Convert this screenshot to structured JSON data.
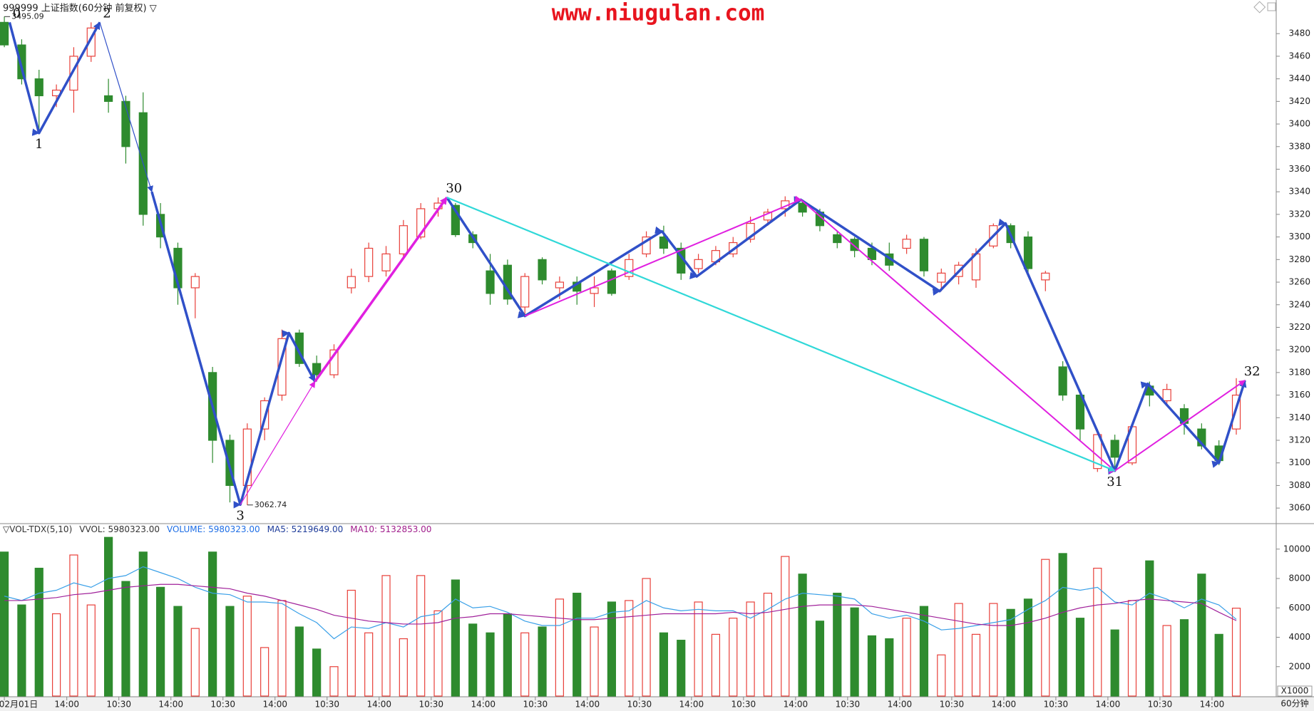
{
  "header": {
    "watermark": "www.niugulan.com",
    "period": "60分钟"
  },
  "chart_data": [
    {
      "type": "candlestick",
      "title": "999999 上证指数(60分钟 前复权) ▽",
      "up_color": "#e8403a",
      "down_color": "#2e8b2e",
      "xlim": [
        -0.25,
        73.3
      ],
      "ylim": [
        3050,
        3506
      ],
      "yticks": [
        3060,
        3080,
        3100,
        3120,
        3140,
        3160,
        3180,
        3200,
        3220,
        3240,
        3260,
        3280,
        3300,
        3320,
        3340,
        3360,
        3380,
        3400,
        3420,
        3440,
        3460,
        3480
      ],
      "ohlc": [
        [
          3490,
          3495.09,
          3468,
          3470
        ],
        [
          3470,
          3475,
          3435,
          3440
        ],
        [
          3440,
          3448,
          3392,
          3425
        ],
        [
          3425,
          3435,
          3415,
          3430
        ],
        [
          3430,
          3468,
          3410,
          3460
        ],
        [
          3460,
          3490,
          3455,
          3485
        ],
        [
          3425,
          3440,
          3410,
          3420
        ],
        [
          3420,
          3425,
          3365,
          3380
        ],
        [
          3410,
          3428,
          3310,
          3320
        ],
        [
          3320,
          3330,
          3290,
          3300
        ],
        [
          3290,
          3295,
          3240,
          3255
        ],
        [
          3255,
          3268,
          3228,
          3265
        ],
        [
          3180,
          3185,
          3100,
          3120
        ],
        [
          3120,
          3125,
          3065,
          3080
        ],
        [
          3080,
          3135,
          3062.74,
          3130
        ],
        [
          3130,
          3158,
          3120,
          3155
        ],
        [
          3160,
          3218,
          3155,
          3210
        ],
        [
          3215,
          3218,
          3185,
          3188
        ],
        [
          3188,
          3195,
          3172,
          3178
        ],
        [
          3178,
          3205,
          3175,
          3200
        ],
        [
          3255,
          3272,
          3250,
          3265
        ],
        [
          3265,
          3295,
          3260,
          3290
        ],
        [
          3270,
          3292,
          3265,
          3285
        ],
        [
          3285,
          3315,
          3280,
          3310
        ],
        [
          3300,
          3330,
          3298,
          3325
        ],
        [
          3325,
          3335,
          3318,
          3330
        ],
        [
          3328,
          3330,
          3300,
          3302
        ],
        [
          3302,
          3305,
          3290,
          3295
        ],
        [
          3270,
          3285,
          3240,
          3250
        ],
        [
          3275,
          3280,
          3240,
          3245
        ],
        [
          3238,
          3268,
          3230,
          3265
        ],
        [
          3280,
          3282,
          3258,
          3262
        ],
        [
          3255,
          3265,
          3245,
          3260
        ],
        [
          3260,
          3265,
          3240,
          3252
        ],
        [
          3250,
          3265,
          3238,
          3255
        ],
        [
          3270,
          3272,
          3248,
          3250
        ],
        [
          3265,
          3285,
          3262,
          3280
        ],
        [
          3285,
          3305,
          3282,
          3300
        ],
        [
          3300,
          3310,
          3285,
          3290
        ],
        [
          3290,
          3295,
          3262,
          3268
        ],
        [
          3272,
          3285,
          3268,
          3280
        ],
        [
          3278,
          3292,
          3275,
          3288
        ],
        [
          3285,
          3300,
          3282,
          3295
        ],
        [
          3298,
          3318,
          3295,
          3312
        ],
        [
          3315,
          3325,
          3310,
          3322
        ],
        [
          3325,
          3336,
          3318,
          3332
        ],
        [
          3330,
          3333,
          3318,
          3322
        ],
        [
          3322,
          3325,
          3305,
          3310
        ],
        [
          3302,
          3305,
          3290,
          3295
        ],
        [
          3298,
          3300,
          3282,
          3288
        ],
        [
          3290,
          3295,
          3275,
          3280
        ],
        [
          3285,
          3295,
          3270,
          3275
        ],
        [
          3290,
          3302,
          3285,
          3298
        ],
        [
          3298,
          3300,
          3265,
          3270
        ],
        [
          3260,
          3272,
          3252,
          3268
        ],
        [
          3265,
          3278,
          3258,
          3275
        ],
        [
          3262,
          3290,
          3255,
          3285
        ],
        [
          3292,
          3312,
          3290,
          3310
        ],
        [
          3310,
          3312,
          3290,
          3295
        ],
        [
          3300,
          3305,
          3265,
          3272
        ],
        [
          3262,
          3270,
          3252,
          3268
        ],
        [
          3185,
          3190,
          3155,
          3160
        ],
        [
          3160,
          3165,
          3120,
          3130
        ],
        [
          3095,
          3130,
          3092,
          3125
        ],
        [
          3120,
          3125,
          3092,
          3105
        ],
        [
          3100,
          3135,
          3098,
          3132
        ],
        [
          3168,
          3172,
          3150,
          3160
        ],
        [
          3155,
          3170,
          3150,
          3165
        ],
        [
          3148,
          3152,
          3125,
          3135
        ],
        [
          3130,
          3135,
          3112,
          3115
        ],
        [
          3115,
          3120,
          3098,
          3102
        ],
        [
          3130,
          3175,
          3125,
          3160
        ]
      ],
      "annotations": [
        {
          "label": "3495.09",
          "value": 3495.09,
          "index": 0
        },
        {
          "label": "3062.74",
          "value": 3062.74,
          "index": 14
        }
      ],
      "pivots": [
        {
          "label": "0",
          "index": 0.3,
          "price": 3490
        },
        {
          "label": "1",
          "index": 2,
          "price": 3392
        },
        {
          "label": "2",
          "index": 5.5,
          "price": 3490
        },
        {
          "label": "3",
          "index": 13.6,
          "price": 3063
        },
        {
          "label": "30",
          "index": 25.5,
          "price": 3335
        },
        {
          "label": "31",
          "index": 64,
          "price": 3093
        },
        {
          "label": "32",
          "index": 71.5,
          "price": 3173
        }
      ],
      "lines": [
        {
          "color": "#3050c8",
          "width": 3.5,
          "points": [
            [
              0.3,
              3490
            ],
            [
              2,
              3392
            ],
            [
              5.5,
              3490
            ]
          ]
        },
        {
          "color": "#3050c8",
          "width": 1.2,
          "points": [
            [
              5.5,
              3490
            ],
            [
              8.5,
              3340
            ]
          ]
        },
        {
          "color": "#3050c8",
          "width": 3.5,
          "points": [
            [
              8.5,
              3340
            ],
            [
              13.6,
              3063
            ],
            [
              16.4,
              3215
            ],
            [
              17.9,
              3172
            ]
          ]
        },
        {
          "color": "#3050c8",
          "width": 1.2,
          "points": [
            [
              17.9,
              3172
            ],
            [
              25.5,
              3335
            ]
          ]
        },
        {
          "color": "#3050c8",
          "width": 3.5,
          "points": [
            [
              25.5,
              3335
            ],
            [
              30,
              3230
            ],
            [
              37.9,
              3305
            ],
            [
              39.9,
              3265
            ],
            [
              45.9,
              3333
            ],
            [
              53.9,
              3252
            ],
            [
              57.7,
              3312
            ],
            [
              64,
              3093
            ],
            [
              65.9,
              3170
            ],
            [
              70,
              3100
            ],
            [
              71.5,
              3173
            ]
          ]
        },
        {
          "color": "#e020e0",
          "width": 1.2,
          "points": [
            [
              13.6,
              3063
            ],
            [
              17.9,
              3172
            ]
          ]
        },
        {
          "color": "#e020e0",
          "width": 3.5,
          "points": [
            [
              17.9,
              3172
            ],
            [
              25.5,
              3335
            ]
          ]
        },
        {
          "color": "#e020e0",
          "width": 2,
          "points": [
            [
              30,
              3230
            ],
            [
              45.9,
              3333
            ],
            [
              64,
              3093
            ],
            [
              71.5,
              3173
            ]
          ]
        },
        {
          "color": "#30d8d8",
          "width": 2.2,
          "points": [
            [
              25.5,
              3335
            ],
            [
              64,
              3093
            ]
          ]
        }
      ]
    },
    {
      "type": "bar",
      "xlim": [
        -0.25,
        73.3
      ],
      "ylim": [
        0,
        11200
      ],
      "yticks": [
        2000,
        4000,
        6000,
        8000,
        10000
      ],
      "unit_label": "X1000",
      "header_items": [
        {
          "text": "▽VOL-TDX(5,10)",
          "color": "#333333"
        },
        {
          "text": "VVOL: 5980323.00",
          "color": "#333333"
        },
        {
          "text": "VOLUME: 5980323.00",
          "color": "#1e6ee6"
        },
        {
          "text": "MA5: 5219649.00",
          "color": "#1e3c9a"
        },
        {
          "text": "MA10: 5132853.00",
          "color": "#a01e8c"
        }
      ],
      "xticks": [
        {
          "value": 0,
          "label": "02月01日"
        },
        {
          "value": 3.6,
          "label": "14:00"
        },
        {
          "value": 6.6,
          "label": "10:30"
        },
        {
          "value": 9.6,
          "label": "14:00"
        },
        {
          "value": 12.6,
          "label": "10:30"
        },
        {
          "value": 15.6,
          "label": "14:00"
        },
        {
          "value": 18.6,
          "label": "10:30"
        },
        {
          "value": 21.6,
          "label": "14:00"
        },
        {
          "value": 24.6,
          "label": "10:30"
        },
        {
          "value": 27.6,
          "label": "14:00"
        },
        {
          "value": 30.6,
          "label": "10:30"
        },
        {
          "value": 33.6,
          "label": "14:00"
        },
        {
          "value": 36.6,
          "label": "10:30"
        },
        {
          "value": 39.6,
          "label": "14:00"
        },
        {
          "value": 42.6,
          "label": "10:30"
        },
        {
          "value": 45.6,
          "label": "14:00"
        },
        {
          "value": 48.6,
          "label": "10:30"
        },
        {
          "value": 51.6,
          "label": "14:00"
        },
        {
          "value": 54.6,
          "label": "10:30"
        },
        {
          "value": 57.6,
          "label": "14:00"
        },
        {
          "value": 60.6,
          "label": "10:30"
        },
        {
          "value": 63.6,
          "label": "14:00"
        },
        {
          "value": 66.6,
          "label": "10:30"
        },
        {
          "value": 69.6,
          "label": "14:00"
        }
      ],
      "volume": [
        9800,
        6200,
        8700,
        5600,
        9600,
        6200,
        10800,
        7800,
        9800,
        7400,
        6100,
        4600,
        9800,
        6100,
        6800,
        3300,
        6500,
        4700,
        3200,
        2000,
        7200,
        4300,
        8200,
        3900,
        8200,
        5800,
        7900,
        4900,
        4300,
        5600,
        4300,
        4700,
        6600,
        7000,
        4700,
        6400,
        6500,
        8000,
        4300,
        3800,
        6400,
        4200,
        5300,
        6400,
        7000,
        9500,
        8300,
        5100,
        7000,
        6000,
        4100,
        3900,
        5300,
        6100,
        2800,
        6300,
        4200,
        6300,
        5900,
        6600,
        9300,
        9700,
        5300,
        8700,
        4500,
        6500,
        9200,
        4800,
        5200,
        8300,
        4200,
        5980
      ],
      "series": [
        {
          "name": "MA5",
          "color": "#3aa0e8",
          "values": [
            6800,
            6500,
            7000,
            7200,
            7700,
            7400,
            8000,
            8200,
            8800,
            8400,
            8000,
            7400,
            7000,
            6900,
            6400,
            6400,
            6300,
            5600,
            5000,
            3900,
            4700,
            4600,
            5000,
            4700,
            5400,
            5600,
            6600,
            6000,
            6100,
            5700,
            5100,
            4800,
            4800,
            5300,
            5300,
            5700,
            5800,
            6500,
            6000,
            5800,
            5900,
            5800,
            5800,
            5300,
            5900,
            6600,
            7000,
            6900,
            6800,
            6600,
            5600,
            5300,
            5500,
            5100,
            4500,
            4600,
            4800,
            5000,
            5200,
            5900,
            6500,
            7400,
            7200,
            7400,
            6400,
            6200,
            7000,
            6600,
            6000,
            6600,
            6200,
            5220
          ]
        },
        {
          "name": "MA10",
          "color": "#a0209a",
          "values": [
            6500,
            6500,
            6600,
            6700,
            6900,
            7000,
            7200,
            7400,
            7500,
            7600,
            7600,
            7500,
            7400,
            7300,
            7000,
            6800,
            6500,
            6200,
            5900,
            5500,
            5300,
            5100,
            5000,
            4900,
            4900,
            5000,
            5300,
            5400,
            5600,
            5600,
            5500,
            5400,
            5300,
            5200,
            5200,
            5300,
            5400,
            5500,
            5600,
            5600,
            5600,
            5600,
            5700,
            5600,
            5700,
            5900,
            6100,
            6200,
            6200,
            6200,
            6100,
            5900,
            5700,
            5500,
            5300,
            5100,
            4900,
            4800,
            4800,
            5000,
            5300,
            5700,
            6000,
            6200,
            6300,
            6500,
            6600,
            6500,
            6400,
            6300,
            5700,
            5133
          ]
        }
      ]
    }
  ]
}
